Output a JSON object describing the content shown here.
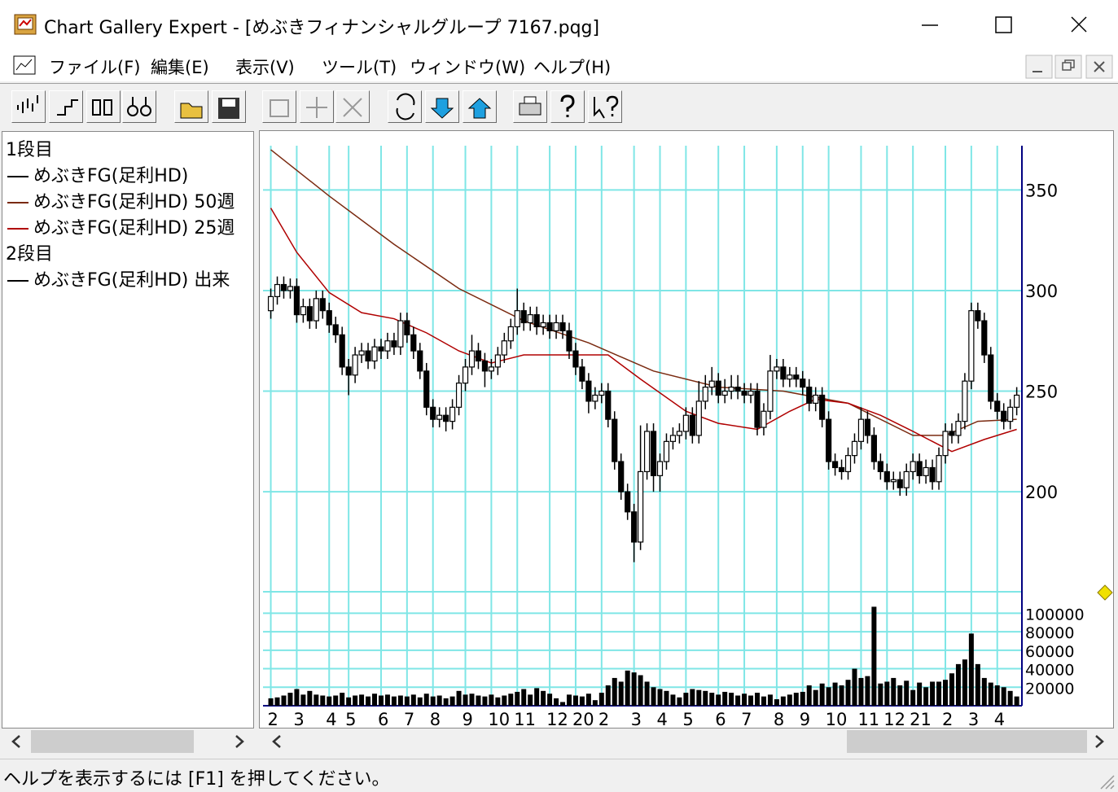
{
  "window": {
    "title": "Chart Gallery Expert - [めぶきフィナンシャルグループ 7167.pqg]",
    "menu": [
      "ファイル(F)",
      "編集(E)",
      "表示(V)",
      "ツール(T)",
      "ウィンドウ(W)",
      "ヘルプ(H)"
    ]
  },
  "status": "ヘルプを表示するには [F1] を押してください。",
  "chart_data": {
    "type": "candlestick",
    "pane_labels": [
      "1段目",
      "2段目"
    ],
    "grid": true,
    "xlim": [
      -1.2,
      115.8
    ],
    "xticks": [
      {
        "value": 0,
        "label": "2"
      },
      {
        "value": 4,
        "label": "3"
      },
      {
        "value": 9,
        "label": "4"
      },
      {
        "value": 12,
        "label": "5"
      },
      {
        "value": 17,
        "label": "6"
      },
      {
        "value": 21,
        "label": "7"
      },
      {
        "value": 25,
        "label": "8"
      },
      {
        "value": 30,
        "label": "9"
      },
      {
        "value": 34,
        "label": "10"
      },
      {
        "value": 38,
        "label": "11"
      },
      {
        "value": 43,
        "label": "12"
      },
      {
        "value": 47,
        "label": "20"
      },
      {
        "value": 51,
        "label": "2"
      },
      {
        "value": 56,
        "label": "3"
      },
      {
        "value": 60,
        "label": "4"
      },
      {
        "value": 64,
        "label": "5"
      },
      {
        "value": 69,
        "label": "6"
      },
      {
        "value": 73,
        "label": "7"
      },
      {
        "value": 78,
        "label": "8"
      },
      {
        "value": 82,
        "label": "9"
      },
      {
        "value": 86,
        "label": "10"
      },
      {
        "value": 91,
        "label": "11"
      },
      {
        "value": 95,
        "label": "12"
      },
      {
        "value": 99,
        "label": "21"
      },
      {
        "value": 104,
        "label": "2"
      },
      {
        "value": 108,
        "label": "3"
      },
      {
        "value": 112,
        "label": "4"
      }
    ],
    "ylim": [
      160,
      372
    ],
    "yticks": [
      200,
      250,
      300,
      350
    ],
    "candles": {
      "name": "めぶきFG(足利HD)",
      "color": "#000000",
      "open": [
        290,
        297,
        303,
        300,
        302,
        288,
        292,
        285,
        296,
        290,
        283,
        278,
        262,
        258,
        268,
        270,
        265,
        272,
        270,
        275,
        272,
        285,
        278,
        270,
        260,
        242,
        236,
        238,
        235,
        242,
        254,
        262,
        270,
        265,
        260,
        262,
        268,
        275,
        282,
        290,
        284,
        288,
        282,
        284,
        280,
        284,
        280,
        270,
        262,
        255,
        245,
        248,
        250,
        236,
        215,
        200,
        190,
        175,
        210,
        230,
        208,
        215,
        225,
        228,
        230,
        238,
        228,
        245,
        252,
        255,
        248,
        250,
        252,
        250,
        248,
        250,
        232,
        240,
        260,
        262,
        256,
        258,
        256,
        252,
        244,
        248,
        236,
        215,
        212,
        210,
        218,
        225,
        236,
        228,
        215,
        210,
        205,
        206,
        202,
        210,
        215,
        208,
        212,
        205,
        218,
        230,
        228,
        235,
        255,
        290,
        285,
        268,
        245,
        240,
        235,
        242
      ],
      "high": [
        301,
        307,
        307,
        306,
        306,
        296,
        296,
        300,
        300,
        294,
        287,
        282,
        266,
        272,
        274,
        274,
        276,
        276,
        279,
        279,
        289,
        289,
        282,
        274,
        264,
        246,
        242,
        242,
        246,
        258,
        266,
        278,
        274,
        269,
        266,
        272,
        279,
        286,
        301,
        294,
        292,
        292,
        288,
        288,
        288,
        288,
        284,
        274,
        266,
        259,
        252,
        254,
        254,
        240,
        219,
        204,
        194,
        233,
        234,
        234,
        219,
        229,
        232,
        234,
        242,
        242,
        255,
        258,
        262,
        259,
        256,
        258,
        258,
        254,
        254,
        254,
        244,
        268,
        266,
        266,
        262,
        262,
        260,
        256,
        252,
        252,
        240,
        219,
        216,
        222,
        229,
        242,
        240,
        232,
        219,
        214,
        210,
        210,
        214,
        219,
        219,
        216,
        216,
        222,
        234,
        234,
        239,
        259,
        294,
        294,
        289,
        272,
        249,
        244,
        246,
        252
      ],
      "low": [
        286,
        293,
        296,
        296,
        284,
        284,
        281,
        281,
        286,
        279,
        274,
        258,
        248,
        254,
        264,
        261,
        261,
        266,
        266,
        268,
        268,
        274,
        266,
        256,
        238,
        232,
        232,
        230,
        231,
        238,
        250,
        258,
        261,
        252,
        256,
        258,
        264,
        271,
        278,
        280,
        280,
        278,
        278,
        276,
        276,
        276,
        266,
        258,
        251,
        239,
        241,
        244,
        232,
        211,
        196,
        186,
        165,
        171,
        206,
        200,
        200,
        211,
        221,
        224,
        226,
        224,
        224,
        241,
        248,
        244,
        244,
        246,
        246,
        244,
        244,
        228,
        228,
        236,
        256,
        252,
        252,
        252,
        248,
        240,
        240,
        232,
        211,
        208,
        206,
        206,
        214,
        221,
        224,
        211,
        206,
        201,
        201,
        198,
        198,
        206,
        204,
        204,
        201,
        201,
        214,
        224,
        224,
        231,
        251,
        281,
        264,
        241,
        236,
        231,
        231,
        238
      ],
      "close": [
        297,
        303,
        300,
        302,
        288,
        292,
        285,
        296,
        290,
        283,
        278,
        262,
        258,
        268,
        270,
        265,
        272,
        270,
        275,
        272,
        285,
        278,
        270,
        260,
        242,
        236,
        238,
        235,
        242,
        254,
        262,
        270,
        265,
        260,
        262,
        268,
        275,
        282,
        290,
        284,
        288,
        282,
        284,
        280,
        284,
        280,
        270,
        262,
        255,
        245,
        248,
        250,
        236,
        215,
        200,
        190,
        175,
        210,
        230,
        208,
        215,
        225,
        228,
        230,
        238,
        228,
        245,
        252,
        255,
        248,
        250,
        252,
        250,
        248,
        250,
        232,
        240,
        260,
        262,
        256,
        258,
        256,
        252,
        244,
        248,
        236,
        215,
        212,
        210,
        218,
        225,
        236,
        228,
        215,
        210,
        205,
        206,
        202,
        210,
        215,
        208,
        212,
        205,
        218,
        230,
        228,
        235,
        255,
        290,
        285,
        268,
        245,
        240,
        235,
        242,
        248
      ]
    },
    "series": [
      {
        "name": "めぶきFG(足利HD) 50週",
        "color": "#7a2a10",
        "x": [
          0,
          9,
          19,
          29,
          39,
          49,
          59,
          69,
          79,
          89,
          99,
          104,
          109,
          115
        ],
        "values": [
          370,
          347,
          323,
          301,
          285,
          274,
          260,
          252,
          250,
          244,
          228,
          228,
          235,
          236
        ]
      },
      {
        "name": "めぶきFG(足利HD) 25週",
        "color": "#b00000",
        "x": [
          0,
          4,
          9,
          14,
          19,
          24,
          29,
          34,
          39,
          44,
          52,
          57,
          64,
          69,
          75,
          80,
          84,
          89,
          94,
          99,
          105,
          110,
          115
        ],
        "values": [
          341,
          319,
          299,
          289,
          286,
          279,
          270,
          264,
          268,
          268,
          268,
          256,
          240,
          234,
          231,
          240,
          246,
          244,
          238,
          230,
          220,
          226,
          231
        ]
      }
    ],
    "volume": {
      "name": "めぶきFG(足利HD) 出来",
      "color": "#000000",
      "ylim": [
        0,
        110000
      ],
      "yticks": [
        20000,
        40000,
        60000,
        80000,
        100000
      ],
      "values": [
        8000,
        9000,
        11000,
        14000,
        18000,
        12000,
        16000,
        12000,
        11000,
        10000,
        11000,
        14000,
        9000,
        11000,
        12000,
        10000,
        13000,
        11000,
        12000,
        10000,
        11000,
        10000,
        12000,
        9000,
        13000,
        10000,
        11000,
        8000,
        10000,
        16000,
        12000,
        13000,
        11000,
        10000,
        12000,
        9000,
        11000,
        13000,
        15000,
        18000,
        12000,
        19000,
        16000,
        13000,
        8000,
        4000,
        12000,
        11000,
        10000,
        13000,
        6000,
        14000,
        22000,
        30000,
        26000,
        38000,
        36000,
        33000,
        26000,
        20000,
        18000,
        16000,
        12000,
        9000,
        14000,
        18000,
        17000,
        16000,
        14000,
        12000,
        15000,
        14000,
        11000,
        13000,
        11000,
        14000,
        10000,
        12000,
        7000,
        10000,
        12000,
        14000,
        15000,
        22000,
        17000,
        24000,
        20000,
        25000,
        22000,
        28000,
        40000,
        30000,
        32000,
        107000,
        24000,
        26000,
        30000,
        22000,
        27000,
        17000,
        25000,
        20000,
        26000,
        26000,
        28000,
        35000,
        45000,
        50000,
        78000,
        45000,
        30000,
        25000,
        22000,
        20000,
        16000,
        10000
      ]
    }
  }
}
